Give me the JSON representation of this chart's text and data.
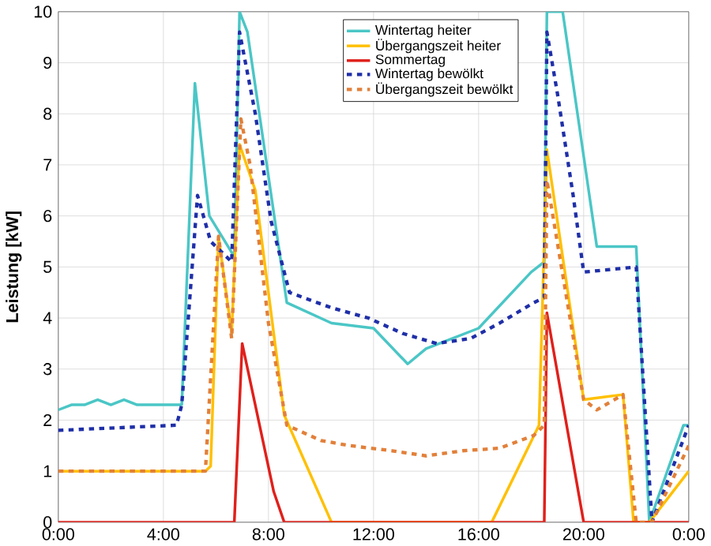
{
  "chart_data": {
    "type": "line",
    "ylabel": "Leistung [kW]",
    "xlim": [
      0,
      24
    ],
    "ylim": [
      0,
      10
    ],
    "xticks": [
      {
        "value": 0,
        "label": "0:00"
      },
      {
        "value": 4,
        "label": "4:00"
      },
      {
        "value": 8,
        "label": "8:00"
      },
      {
        "value": 12,
        "label": "12:00"
      },
      {
        "value": 16,
        "label": "16:00"
      },
      {
        "value": 20,
        "label": "20:00"
      },
      {
        "value": 24,
        "label": "0:00"
      }
    ],
    "yticks": [
      0,
      1,
      2,
      3,
      4,
      5,
      6,
      7,
      8,
      9,
      10
    ],
    "grid": true,
    "legend": "top right",
    "marker": "none",
    "series": [
      {
        "name": "Wintertag heiter",
        "color": "#4bc6c6",
        "line_style": "solid",
        "x": [
          0,
          0.5,
          1,
          1.5,
          2,
          2.5,
          3,
          3.5,
          4,
          4.5,
          4.7,
          5.2,
          5.75,
          6.7,
          6.9,
          7.2,
          8.7,
          10.4,
          12,
          13.3,
          14,
          16,
          18,
          18.5,
          18.6,
          19.2,
          20.5,
          22,
          22.5,
          23.8,
          24
        ],
        "values": [
          2.2,
          2.3,
          2.3,
          2.4,
          2.3,
          2.4,
          2.3,
          2.3,
          2.3,
          2.3,
          2.3,
          8.6,
          6.0,
          5.2,
          10,
          9.6,
          4.3,
          3.9,
          3.8,
          3.1,
          3.4,
          3.8,
          4.9,
          5.1,
          10,
          10,
          5.4,
          5.4,
          0,
          1.9,
          1.9
        ]
      },
      {
        "name": "Übergangszeit heiter",
        "color": "#ffc000",
        "line_style": "solid",
        "x": [
          0,
          5.6,
          5.8,
          6.1,
          6.6,
          6.9,
          7.5,
          8.6,
          10.4,
          16.5,
          18.3,
          18.6,
          20.0,
          21.5,
          21.9,
          22.5,
          24
        ],
        "values": [
          1.0,
          1.0,
          1.1,
          5.6,
          3.7,
          7.4,
          6.5,
          2.1,
          0,
          0,
          1.9,
          7.3,
          2.4,
          2.5,
          0,
          0,
          1.0
        ]
      },
      {
        "name": "Sommertag",
        "color": "#e0201b",
        "line_style": "solid",
        "x": [
          0,
          6.7,
          7.0,
          8.2,
          8.6,
          18.5,
          18.6,
          20.0,
          24
        ],
        "values": [
          0,
          0,
          3.5,
          0.6,
          0,
          0,
          4.1,
          0,
          0
        ]
      },
      {
        "name": "Wintertag bewölkt",
        "color": "#1f2fa8",
        "line_style": "dashed",
        "x": [
          0,
          4.5,
          4.7,
          5.3,
          5.8,
          6.6,
          6.9,
          7.5,
          8.1,
          8.8,
          10.4,
          11.8,
          13.1,
          14.4,
          15.7,
          16.8,
          18.1,
          18.5,
          18.6,
          19.0,
          19.6,
          20.0,
          22.0,
          22.6,
          24
        ],
        "values": [
          1.8,
          1.9,
          2.3,
          6.4,
          5.5,
          5.1,
          9.6,
          8.0,
          5.9,
          4.5,
          4.2,
          4.0,
          3.7,
          3.5,
          3.6,
          3.9,
          4.3,
          4.4,
          9.6,
          8.4,
          6.4,
          4.9,
          5.0,
          0,
          1.9
        ]
      },
      {
        "name": "Übergangszeit bewölkt",
        "color": "#e2803a",
        "line_style": "dashed",
        "x": [
          0,
          5.6,
          6.1,
          6.6,
          6.95,
          7.3,
          8.0,
          8.7,
          10.0,
          11.1,
          12.7,
          14.0,
          15.4,
          16.8,
          18.1,
          18.5,
          18.6,
          20.0,
          20.5,
          21.5,
          22.0,
          22.6,
          24
        ],
        "values": [
          1.0,
          1.0,
          5.6,
          3.6,
          7.9,
          7.0,
          3.9,
          1.9,
          1.6,
          1.5,
          1.4,
          1.3,
          1.4,
          1.45,
          1.7,
          1.9,
          6.7,
          2.4,
          2.2,
          2.5,
          0,
          0,
          1.5
        ]
      }
    ]
  }
}
